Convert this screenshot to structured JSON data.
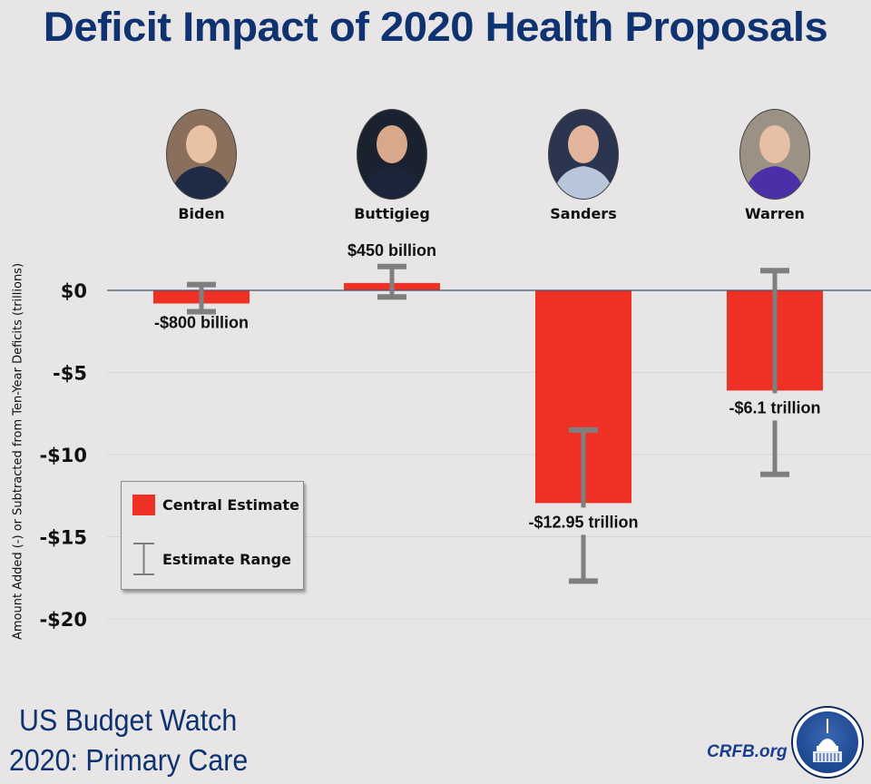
{
  "title": "Deficit Impact of 2020 Health Proposals",
  "candidates": [
    {
      "name": "Biden",
      "portrait": "biden-portrait",
      "suit": "#1f2a44",
      "skin": "#e9c2a6",
      "bg": "#8a6f5d"
    },
    {
      "name": "Buttigieg",
      "portrait": "buttigieg-portrait",
      "suit": "#1b2438",
      "skin": "#d7a98a",
      "bg": "#1a2230"
    },
    {
      "name": "Sanders",
      "portrait": "sanders-portrait",
      "suit": "#b8c6dc",
      "skin": "#e2b59c",
      "bg": "#2b3550"
    },
    {
      "name": "Warren",
      "portrait": "warren-portrait",
      "suit": "#4a2fa8",
      "skin": "#e6bfa4",
      "bg": "#9c9185"
    }
  ],
  "colors": {
    "bar": "#ee3124",
    "errorbar": "#7f7f7f",
    "title": "#0f3370",
    "axis": "#44546a",
    "grid": "#d6d4d5"
  },
  "legend": {
    "central": "Central Estimate",
    "range": "Estimate Range"
  },
  "footer": {
    "line1": "US Budget Watch",
    "line2": "2020: Primary Care",
    "site": "CRFB.org"
  },
  "chart_data": {
    "type": "bar",
    "title": "Deficit Impact of 2020 Health Proposals",
    "categories": [
      "Biden",
      "Buttigieg",
      "Sanders",
      "Warren"
    ],
    "series": [
      {
        "name": "Central Estimate",
        "values": [
          -0.8,
          0.45,
          -12.95,
          -6.1
        ]
      },
      {
        "name": "Estimate Range",
        "low": [
          -1.3,
          -0.4,
          -17.7,
          -11.2
        ],
        "high": [
          0.35,
          1.45,
          -8.5,
          1.2
        ]
      }
    ],
    "data_labels": [
      "-$800 billion",
      "$450 billion",
      "-$12.95 trillion",
      "-$6.1 trillion"
    ],
    "ylabel": "Amount Added (-) or Subtracted from Ten-Year Deficits (trillions)",
    "xlabel": "",
    "yticks": [
      0,
      -5,
      -10,
      -15,
      -20
    ],
    "ytick_labels": [
      "$0",
      "-$5",
      "-$10",
      "-$15",
      "-$20"
    ],
    "ylim": [
      -23,
      2
    ],
    "grid": true,
    "legend_position": "bottom-left"
  }
}
